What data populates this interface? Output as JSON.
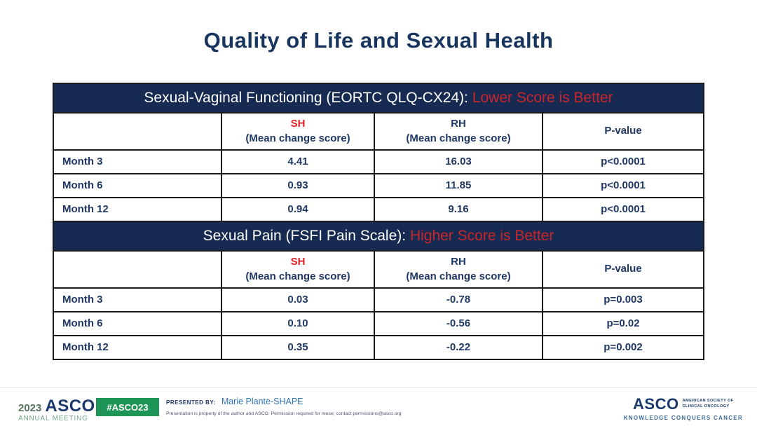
{
  "title": "Quality of Life and Sexual Health",
  "table": {
    "sections": [
      {
        "banner": {
          "text": "Sexual-Vaginal Functioning (EORTC QLQ-CX24): ",
          "highlight": "Lower Score is Better"
        },
        "col_headers": {
          "row_label": "",
          "sh": "SH",
          "sh_sub": "(Mean change score)",
          "rh": "RH",
          "rh_sub": "(Mean change score)",
          "p": "P-value"
        },
        "rows": [
          {
            "label": "Month 3",
            "sh": "4.41",
            "rh": "16.03",
            "p": "p<0.0001"
          },
          {
            "label": "Month 6",
            "sh": "0.93",
            "rh": "11.85",
            "p": "p<0.0001"
          },
          {
            "label": "Month 12",
            "sh": "0.94",
            "rh": "9.16",
            "p": "p<0.0001"
          }
        ]
      },
      {
        "banner": {
          "text": "Sexual Pain (FSFI Pain Scale): ",
          "highlight": "Higher Score is Better"
        },
        "col_headers": {
          "row_label": "",
          "sh": "SH",
          "sh_sub": "(Mean change score)",
          "rh": "RH",
          "rh_sub": "(Mean change score)",
          "p": "P-value"
        },
        "rows": [
          {
            "label": "Month 3",
            "sh": "0.03",
            "rh": "-0.78",
            "p": "p=0.003"
          },
          {
            "label": "Month 6",
            "sh": "0.10",
            "rh": "-0.56",
            "p": "p=0.02"
          },
          {
            "label": "Month 12",
            "sh": "0.35",
            "rh": "-0.22",
            "p": "p=0.002"
          }
        ]
      }
    ]
  },
  "chart_data": {
    "type": "table",
    "tables": [
      {
        "title": "Sexual-Vaginal Functioning (EORTC QLQ-CX24): Lower Score is Better",
        "columns": [
          "",
          "SH (Mean change score)",
          "RH (Mean change score)",
          "P-value"
        ],
        "rows": [
          [
            "Month 3",
            4.41,
            16.03,
            "p<0.0001"
          ],
          [
            "Month 6",
            0.93,
            11.85,
            "p<0.0001"
          ],
          [
            "Month 12",
            0.94,
            9.16,
            "p<0.0001"
          ]
        ]
      },
      {
        "title": "Sexual Pain (FSFI Pain Scale): Higher Score is Better",
        "columns": [
          "",
          "SH (Mean change score)",
          "RH (Mean change score)",
          "P-value"
        ],
        "rows": [
          [
            "Month 3",
            0.03,
            -0.78,
            "p=0.003"
          ],
          [
            "Month 6",
            0.1,
            -0.56,
            "p=0.02"
          ],
          [
            "Month 12",
            0.35,
            -0.22,
            "p=0.002"
          ]
        ]
      }
    ]
  },
  "footer": {
    "meeting_year": "2023",
    "meeting_org": "ASCO",
    "meeting_name": "ANNUAL MEETING",
    "hashtag": "#ASCO23",
    "presented_by_label": "PRESENTED BY:",
    "presenter": "Marie Plante-SHAPE",
    "disclaimer": "Presentation is property of the author and ASCO. Permission required for reuse; contact permissions@asco.org",
    "asco_logo": "ASCO",
    "asco_society_line1": "AMERICAN SOCIETY OF",
    "asco_society_line2": "CLINICAL ONCOLOGY",
    "asco_tagline": "KNOWLEDGE CONQUERS CANCER"
  },
  "colors": {
    "navy_text": "#1F3864",
    "banner_navy": "#172A52",
    "banner_red": "#C9252B",
    "sh_red": "#E01F26",
    "badge_green": "#1E9556",
    "tagline_blue": "#3A6B9B"
  }
}
